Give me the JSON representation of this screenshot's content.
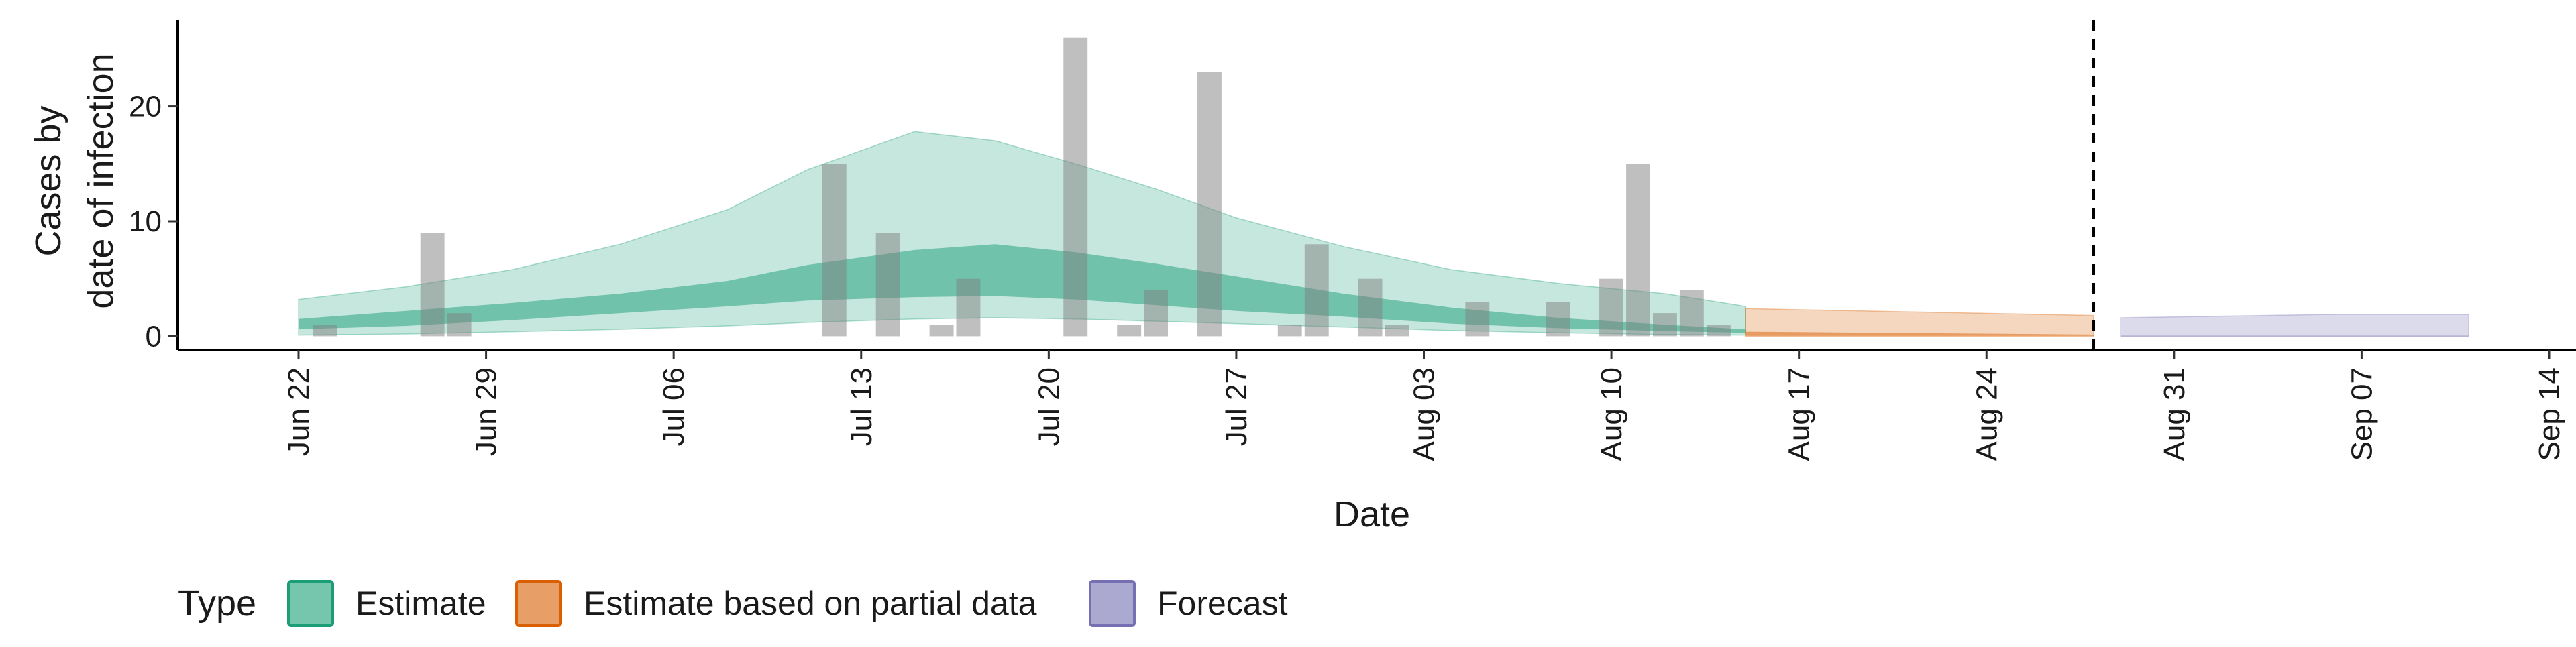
{
  "chart_data": {
    "type": "area",
    "xlabel": "Date",
    "ylabel_lines": [
      "Cases by",
      "date of infection"
    ],
    "ylim": [
      -1.2,
      27.5
    ],
    "y_ticks": [
      0,
      10,
      20
    ],
    "x_ticks": [
      {
        "date": "2020-06-22",
        "label": "Jun 22"
      },
      {
        "date": "2020-06-29",
        "label": "Jun 29"
      },
      {
        "date": "2020-07-06",
        "label": "Jul 06"
      },
      {
        "date": "2020-07-13",
        "label": "Jul 13"
      },
      {
        "date": "2020-07-20",
        "label": "Jul 20"
      },
      {
        "date": "2020-07-27",
        "label": "Jul 27"
      },
      {
        "date": "2020-08-03",
        "label": "Aug 03"
      },
      {
        "date": "2020-08-10",
        "label": "Aug 10"
      },
      {
        "date": "2020-08-17",
        "label": "Aug 17"
      },
      {
        "date": "2020-08-24",
        "label": "Aug 24"
      },
      {
        "date": "2020-08-31",
        "label": "Aug 31"
      },
      {
        "date": "2020-09-07",
        "label": "Sep 07"
      },
      {
        "date": "2020-09-14",
        "label": "Sep 14"
      }
    ],
    "xlim": [
      "2020-06-15",
      "2020-09-14"
    ],
    "forecast_start_line": "2020-08-28",
    "observed_cases": [
      {
        "date": "2020-06-23",
        "value": 1
      },
      {
        "date": "2020-06-27",
        "value": 9
      },
      {
        "date": "2020-06-28",
        "value": 2
      },
      {
        "date": "2020-07-12",
        "value": 15
      },
      {
        "date": "2020-07-14",
        "value": 9
      },
      {
        "date": "2020-07-16",
        "value": 1
      },
      {
        "date": "2020-07-17",
        "value": 5
      },
      {
        "date": "2020-07-21",
        "value": 26
      },
      {
        "date": "2020-07-23",
        "value": 1
      },
      {
        "date": "2020-07-24",
        "value": 4
      },
      {
        "date": "2020-07-26",
        "value": 23
      },
      {
        "date": "2020-07-29",
        "value": 1
      },
      {
        "date": "2020-07-30",
        "value": 8
      },
      {
        "date": "2020-08-01",
        "value": 5
      },
      {
        "date": "2020-08-02",
        "value": 1
      },
      {
        "date": "2020-08-05",
        "value": 3
      },
      {
        "date": "2020-08-08",
        "value": 3
      },
      {
        "date": "2020-08-10",
        "value": 5
      },
      {
        "date": "2020-08-11",
        "value": 15
      },
      {
        "date": "2020-08-12",
        "value": 2
      },
      {
        "date": "2020-08-13",
        "value": 4
      },
      {
        "date": "2020-08-14",
        "value": 1
      }
    ],
    "series": [
      {
        "name": "Estimate",
        "color": "#1b9e77",
        "dates": [
          "2020-06-22",
          "2020-06-26",
          "2020-06-30",
          "2020-07-04",
          "2020-07-08",
          "2020-07-11",
          "2020-07-15",
          "2020-07-18",
          "2020-07-21",
          "2020-07-24",
          "2020-07-27",
          "2020-07-31",
          "2020-08-04",
          "2020-08-08",
          "2020-08-12",
          "2020-08-15"
        ],
        "lower90": [
          0.1,
          0.2,
          0.4,
          0.6,
          0.9,
          1.2,
          1.5,
          1.6,
          1.5,
          1.3,
          1.1,
          0.8,
          0.5,
          0.3,
          0.15,
          0.1
        ],
        "upper90": [
          3.2,
          4.3,
          5.8,
          8.0,
          11.0,
          14.5,
          17.8,
          17.0,
          15.0,
          12.8,
          10.3,
          7.8,
          5.8,
          4.6,
          3.7,
          2.6
        ],
        "lower50": [
          0.6,
          0.9,
          1.4,
          2.0,
          2.6,
          3.1,
          3.4,
          3.5,
          3.2,
          2.7,
          2.2,
          1.7,
          1.1,
          0.7,
          0.45,
          0.3
        ],
        "upper50": [
          1.5,
          2.2,
          2.9,
          3.7,
          4.8,
          6.2,
          7.5,
          8.0,
          7.3,
          6.3,
          5.2,
          3.7,
          2.5,
          1.6,
          1.0,
          0.6
        ]
      },
      {
        "name": "Estimate based on partial data",
        "color": "#d95f02",
        "dates": [
          "2020-08-15",
          "2020-08-28"
        ],
        "lower90": [
          0.0,
          0.0
        ],
        "upper90": [
          2.4,
          1.8
        ],
        "lower50": [
          0.05,
          0.05
        ],
        "upper50": [
          0.4,
          0.15
        ]
      },
      {
        "name": "Forecast",
        "color": "#7570b3",
        "dates": [
          "2020-08-29",
          "2020-09-06",
          "2020-09-11"
        ],
        "lower90": [
          0.0,
          0.0,
          0.0
        ],
        "upper90": [
          1.6,
          1.9,
          1.9
        ],
        "lower50": [
          0.0,
          0.0,
          0.0
        ],
        "upper50": [
          0.05,
          0.05,
          0.05
        ]
      }
    ],
    "legend": {
      "position": "bottom",
      "title": "Type",
      "items": [
        "Estimate",
        "Estimate based on partial data",
        "Forecast"
      ]
    }
  }
}
